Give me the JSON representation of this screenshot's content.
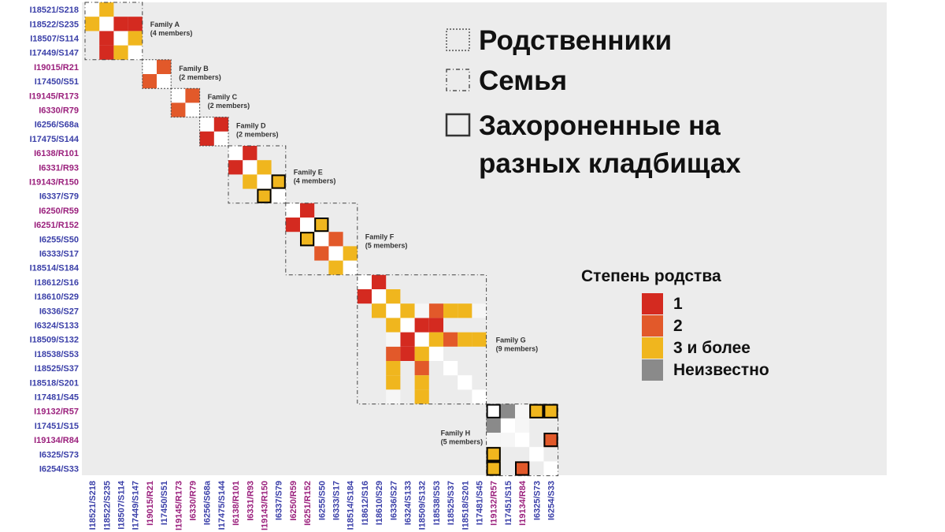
{
  "chart_data": {
    "type": "heatmap",
    "labels": [
      {
        "text": "I18521/S218",
        "color": "blue"
      },
      {
        "text": "I18522/S235",
        "color": "blue"
      },
      {
        "text": "I18507/S114",
        "color": "blue"
      },
      {
        "text": "I17449/S147",
        "color": "blue"
      },
      {
        "text": "I19015/R21",
        "color": "purple"
      },
      {
        "text": "I17450/S51",
        "color": "blue"
      },
      {
        "text": "I19145/R173",
        "color": "purple"
      },
      {
        "text": "I6330/R79",
        "color": "purple"
      },
      {
        "text": "I6256/S68a",
        "color": "blue"
      },
      {
        "text": "I17475/S144",
        "color": "blue"
      },
      {
        "text": "I6138/R101",
        "color": "purple"
      },
      {
        "text": "I6331/R93",
        "color": "purple"
      },
      {
        "text": "I19143/R150",
        "color": "purple"
      },
      {
        "text": "I6337/S79",
        "color": "blue"
      },
      {
        "text": "I6250/R59",
        "color": "purple"
      },
      {
        "text": "I6251/R152",
        "color": "purple"
      },
      {
        "text": "I6255/S50",
        "color": "blue"
      },
      {
        "text": "I6333/S17",
        "color": "blue"
      },
      {
        "text": "I18514/S184",
        "color": "blue"
      },
      {
        "text": "I18612/S16",
        "color": "blue"
      },
      {
        "text": "I18610/S29",
        "color": "blue"
      },
      {
        "text": "I6336/S27",
        "color": "blue"
      },
      {
        "text": "I6324/S133",
        "color": "blue"
      },
      {
        "text": "I18509/S132",
        "color": "blue"
      },
      {
        "text": "I18538/S53",
        "color": "blue"
      },
      {
        "text": "I18525/S37",
        "color": "blue"
      },
      {
        "text": "I18518/S201",
        "color": "blue"
      },
      {
        "text": "I17481/S45",
        "color": "blue"
      },
      {
        "text": "I19132/R57",
        "color": "purple"
      },
      {
        "text": "I17451/S15",
        "color": "blue"
      },
      {
        "text": "I19134/R84",
        "color": "purple"
      },
      {
        "text": "I6325/S73",
        "color": "blue"
      },
      {
        "text": "I6254/S33",
        "color": "blue"
      }
    ],
    "label_colors": {
      "blue": "#3a3fa8",
      "purple": "#9a1f7c"
    },
    "degree_colors": {
      "1": "#d42a20",
      "2": "#e2592a",
      "3": "#f0b61e",
      "u": "#8a8a8a"
    },
    "cells": [
      [
        0,
        1,
        3
      ],
      [
        1,
        0,
        3
      ],
      [
        1,
        2,
        1
      ],
      [
        2,
        1,
        1
      ],
      [
        1,
        3,
        1
      ],
      [
        3,
        1,
        1
      ],
      [
        2,
        3,
        3
      ],
      [
        3,
        2,
        3
      ],
      [
        4,
        5,
        2
      ],
      [
        5,
        4,
        2
      ],
      [
        6,
        7,
        2
      ],
      [
        7,
        6,
        2
      ],
      [
        8,
        9,
        1
      ],
      [
        9,
        8,
        1
      ],
      [
        10,
        11,
        1
      ],
      [
        11,
        10,
        1
      ],
      [
        11,
        12,
        3
      ],
      [
        12,
        11,
        3
      ],
      [
        12,
        13,
        3
      ],
      [
        13,
        12,
        3
      ],
      [
        14,
        15,
        1
      ],
      [
        15,
        14,
        1
      ],
      [
        15,
        16,
        3
      ],
      [
        16,
        15,
        3
      ],
      [
        16,
        17,
        2
      ],
      [
        17,
        16,
        2
      ],
      [
        17,
        18,
        3
      ],
      [
        18,
        17,
        3
      ],
      [
        19,
        20,
        1
      ],
      [
        20,
        19,
        1
      ],
      [
        20,
        21,
        3
      ],
      [
        21,
        20,
        3
      ],
      [
        21,
        22,
        3
      ],
      [
        22,
        21,
        3
      ],
      [
        21,
        24,
        2
      ],
      [
        24,
        21,
        2
      ],
      [
        21,
        25,
        3
      ],
      [
        25,
        21,
        3
      ],
      [
        21,
        26,
        3
      ],
      [
        26,
        21,
        3
      ],
      [
        22,
        23,
        1
      ],
      [
        23,
        22,
        1
      ],
      [
        22,
        24,
        1
      ],
      [
        24,
        22,
        1
      ],
      [
        23,
        24,
        3
      ],
      [
        24,
        23,
        3
      ],
      [
        21,
        23,
        "g"
      ],
      [
        23,
        21,
        "g"
      ],
      [
        21,
        27,
        "g"
      ],
      [
        27,
        21,
        "g"
      ],
      [
        23,
        25,
        2
      ],
      [
        25,
        23,
        2
      ],
      [
        23,
        26,
        3
      ],
      [
        26,
        23,
        3
      ],
      [
        23,
        27,
        3
      ],
      [
        27,
        23,
        3
      ],
      [
        28,
        29,
        "u"
      ],
      [
        29,
        28,
        "u"
      ],
      [
        28,
        30,
        "g"
      ],
      [
        30,
        28,
        "g"
      ],
      [
        28,
        31,
        3
      ],
      [
        31,
        28,
        3
      ],
      [
        28,
        32,
        3
      ],
      [
        32,
        28,
        3
      ],
      [
        29,
        30,
        "g"
      ],
      [
        30,
        29,
        "g"
      ],
      [
        30,
        32,
        2
      ],
      [
        32,
        30,
        2
      ]
    ],
    "borders": [
      [
        13,
        12
      ],
      [
        12,
        13
      ],
      [
        16,
        15
      ],
      [
        15,
        16
      ],
      [
        28,
        28
      ],
      [
        28,
        31
      ],
      [
        28,
        32
      ],
      [
        31,
        28
      ],
      [
        32,
        28
      ],
      [
        30,
        32
      ],
      [
        32,
        30
      ]
    ],
    "families": [
      {
        "name": "Family A",
        "members": "(4 members)",
        "start": 0,
        "end": 3
      },
      {
        "name": "Family B",
        "members": "(2 members)",
        "start": 4,
        "end": 5
      },
      {
        "name": "Family C",
        "members": "(2 members)",
        "start": 6,
        "end": 7
      },
      {
        "name": "Family D",
        "members": "(2 members)",
        "start": 8,
        "end": 9
      },
      {
        "name": "Family E",
        "members": "(4 members)",
        "start": 10,
        "end": 13
      },
      {
        "name": "Family F",
        "members": "(5 members)",
        "start": 14,
        "end": 18
      },
      {
        "name": "Family G",
        "members": "(9 members)",
        "start": 19,
        "end": 27
      },
      {
        "name": "Family H",
        "members": "(5 members)",
        "start": 28,
        "end": 32
      }
    ],
    "legend": {
      "title": "Степень родства",
      "items": [
        {
          "key": "1",
          "label": "1"
        },
        {
          "key": "2",
          "label": "2"
        },
        {
          "key": "3",
          "label": "3 и более"
        },
        {
          "key": "u",
          "label": "Неизвестно"
        }
      ]
    }
  },
  "box_key": [
    {
      "style": "dotted",
      "text_lines": [
        "Родственники"
      ]
    },
    {
      "style": "dashdot",
      "text_lines": [
        "Семья"
      ]
    },
    {
      "style": "solid",
      "text_lines": [
        "Захороненные на",
        "разных кладбищах"
      ]
    }
  ]
}
